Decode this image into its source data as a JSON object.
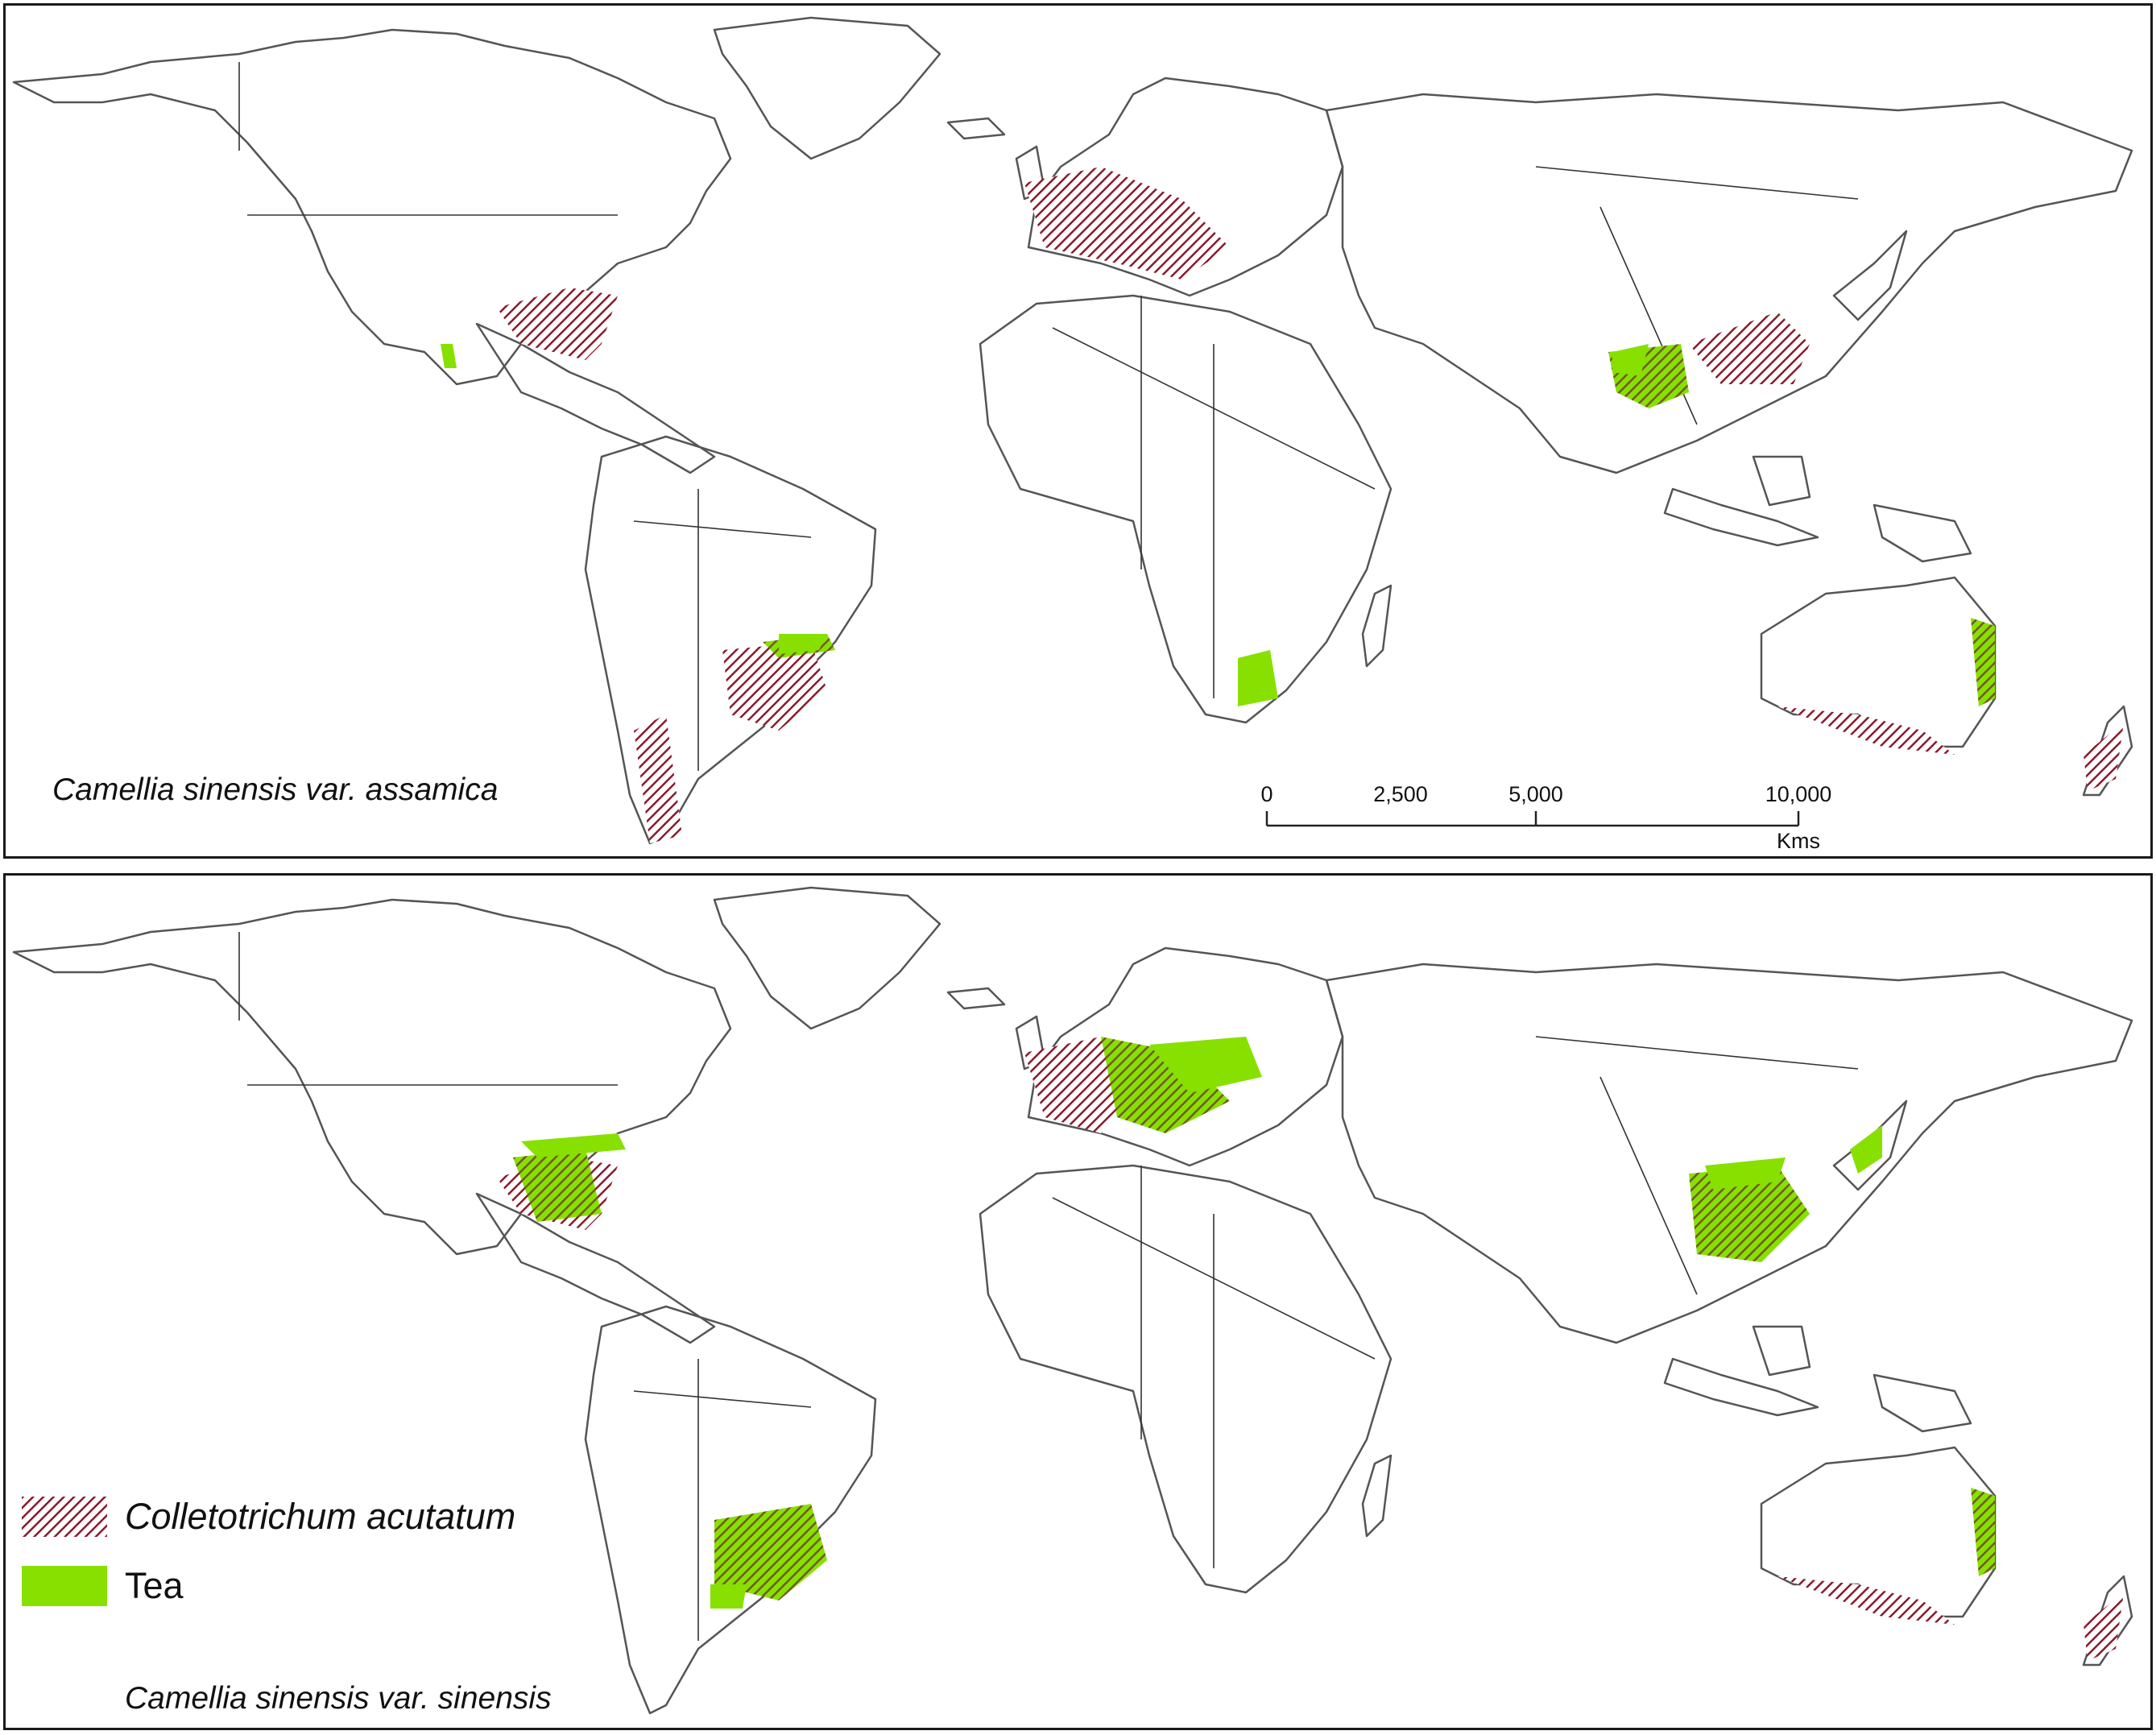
{
  "colors": {
    "pathogen": "#8b1a2b",
    "tea": "#88e000",
    "overlap": "#6e5a1e",
    "coast": "#555555",
    "border": "#333333"
  },
  "panels": {
    "top": {
      "caption": "Camellia sinensis var. assamica"
    },
    "bottom": {
      "caption": "Camellia sinensis var. sinensis"
    }
  },
  "scale_bar": {
    "ticks": [
      "0",
      "2,500",
      "5,000",
      "10,000"
    ],
    "unit": "Kms"
  },
  "legend": {
    "items": [
      {
        "label": "Colletotrichum acutatum",
        "swatch": "pathogen"
      },
      {
        "label": "Tea",
        "swatch": "tea"
      }
    ]
  }
}
